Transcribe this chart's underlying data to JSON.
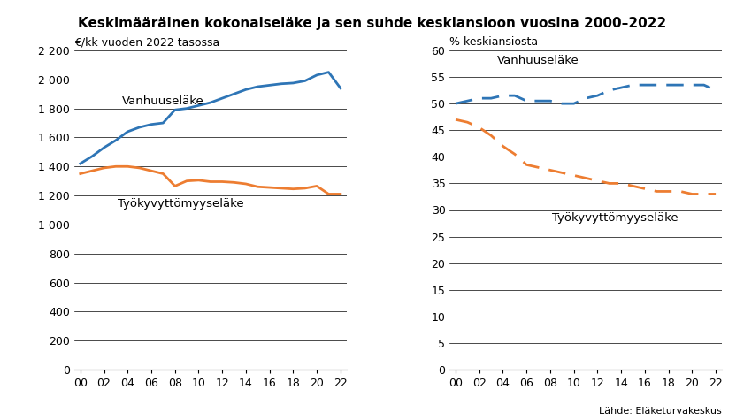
{
  "title": "Keskimääräinen kokonaiseläke ja sen suhde keskiansioon vuosina 2000–2022",
  "years": [
    2000,
    2001,
    2002,
    2003,
    2004,
    2005,
    2006,
    2007,
    2008,
    2009,
    2010,
    2011,
    2012,
    2013,
    2014,
    2015,
    2016,
    2017,
    2018,
    2019,
    2020,
    2021,
    2022
  ],
  "left_vanhuus": [
    1420,
    1470,
    1530,
    1580,
    1640,
    1670,
    1690,
    1700,
    1790,
    1800,
    1820,
    1840,
    1870,
    1900,
    1930,
    1950,
    1960,
    1970,
    1975,
    1990,
    2030,
    2050,
    1940
  ],
  "left_tyokyvyttomyys": [
    1350,
    1370,
    1390,
    1400,
    1400,
    1390,
    1370,
    1350,
    1265,
    1300,
    1305,
    1295,
    1295,
    1290,
    1280,
    1260,
    1255,
    1250,
    1245,
    1250,
    1265,
    1210,
    1210
  ],
  "right_vanhuus": [
    50.0,
    50.5,
    51.0,
    51.0,
    51.5,
    51.5,
    50.5,
    50.5,
    50.5,
    50.0,
    50.0,
    51.0,
    51.5,
    52.5,
    53.0,
    53.5,
    53.5,
    53.5,
    53.5,
    53.5,
    53.5,
    53.5,
    52.5
  ],
  "right_tyokyvyttomyys": [
    47.0,
    46.5,
    45.5,
    44.0,
    42.0,
    40.5,
    38.5,
    38.0,
    37.5,
    37.0,
    36.5,
    36.0,
    35.5,
    35.0,
    35.0,
    34.5,
    34.0,
    33.5,
    33.5,
    33.5,
    33.0,
    33.0,
    33.0
  ],
  "left_axis_label": "€/kk vuoden 2022 tasossa",
  "right_axis_label": "% keskiansiosta",
  "left_ylim": [
    0,
    2200
  ],
  "left_yticks": [
    0,
    200,
    400,
    600,
    800,
    1000,
    1200,
    1400,
    1600,
    1800,
    2000,
    2200
  ],
  "right_ylim": [
    0,
    60
  ],
  "right_yticks": [
    0,
    5,
    10,
    15,
    20,
    25,
    30,
    35,
    40,
    45,
    50,
    55,
    60
  ],
  "blue_color": "#2E75B6",
  "orange_color": "#ED7D31",
  "source_text": "Lähde: Eläketurvakeskus",
  "vanhuus_label": "Vanhuuseläke",
  "tyokyvyttomyys_label": "Työkyvyttömyyseläke"
}
